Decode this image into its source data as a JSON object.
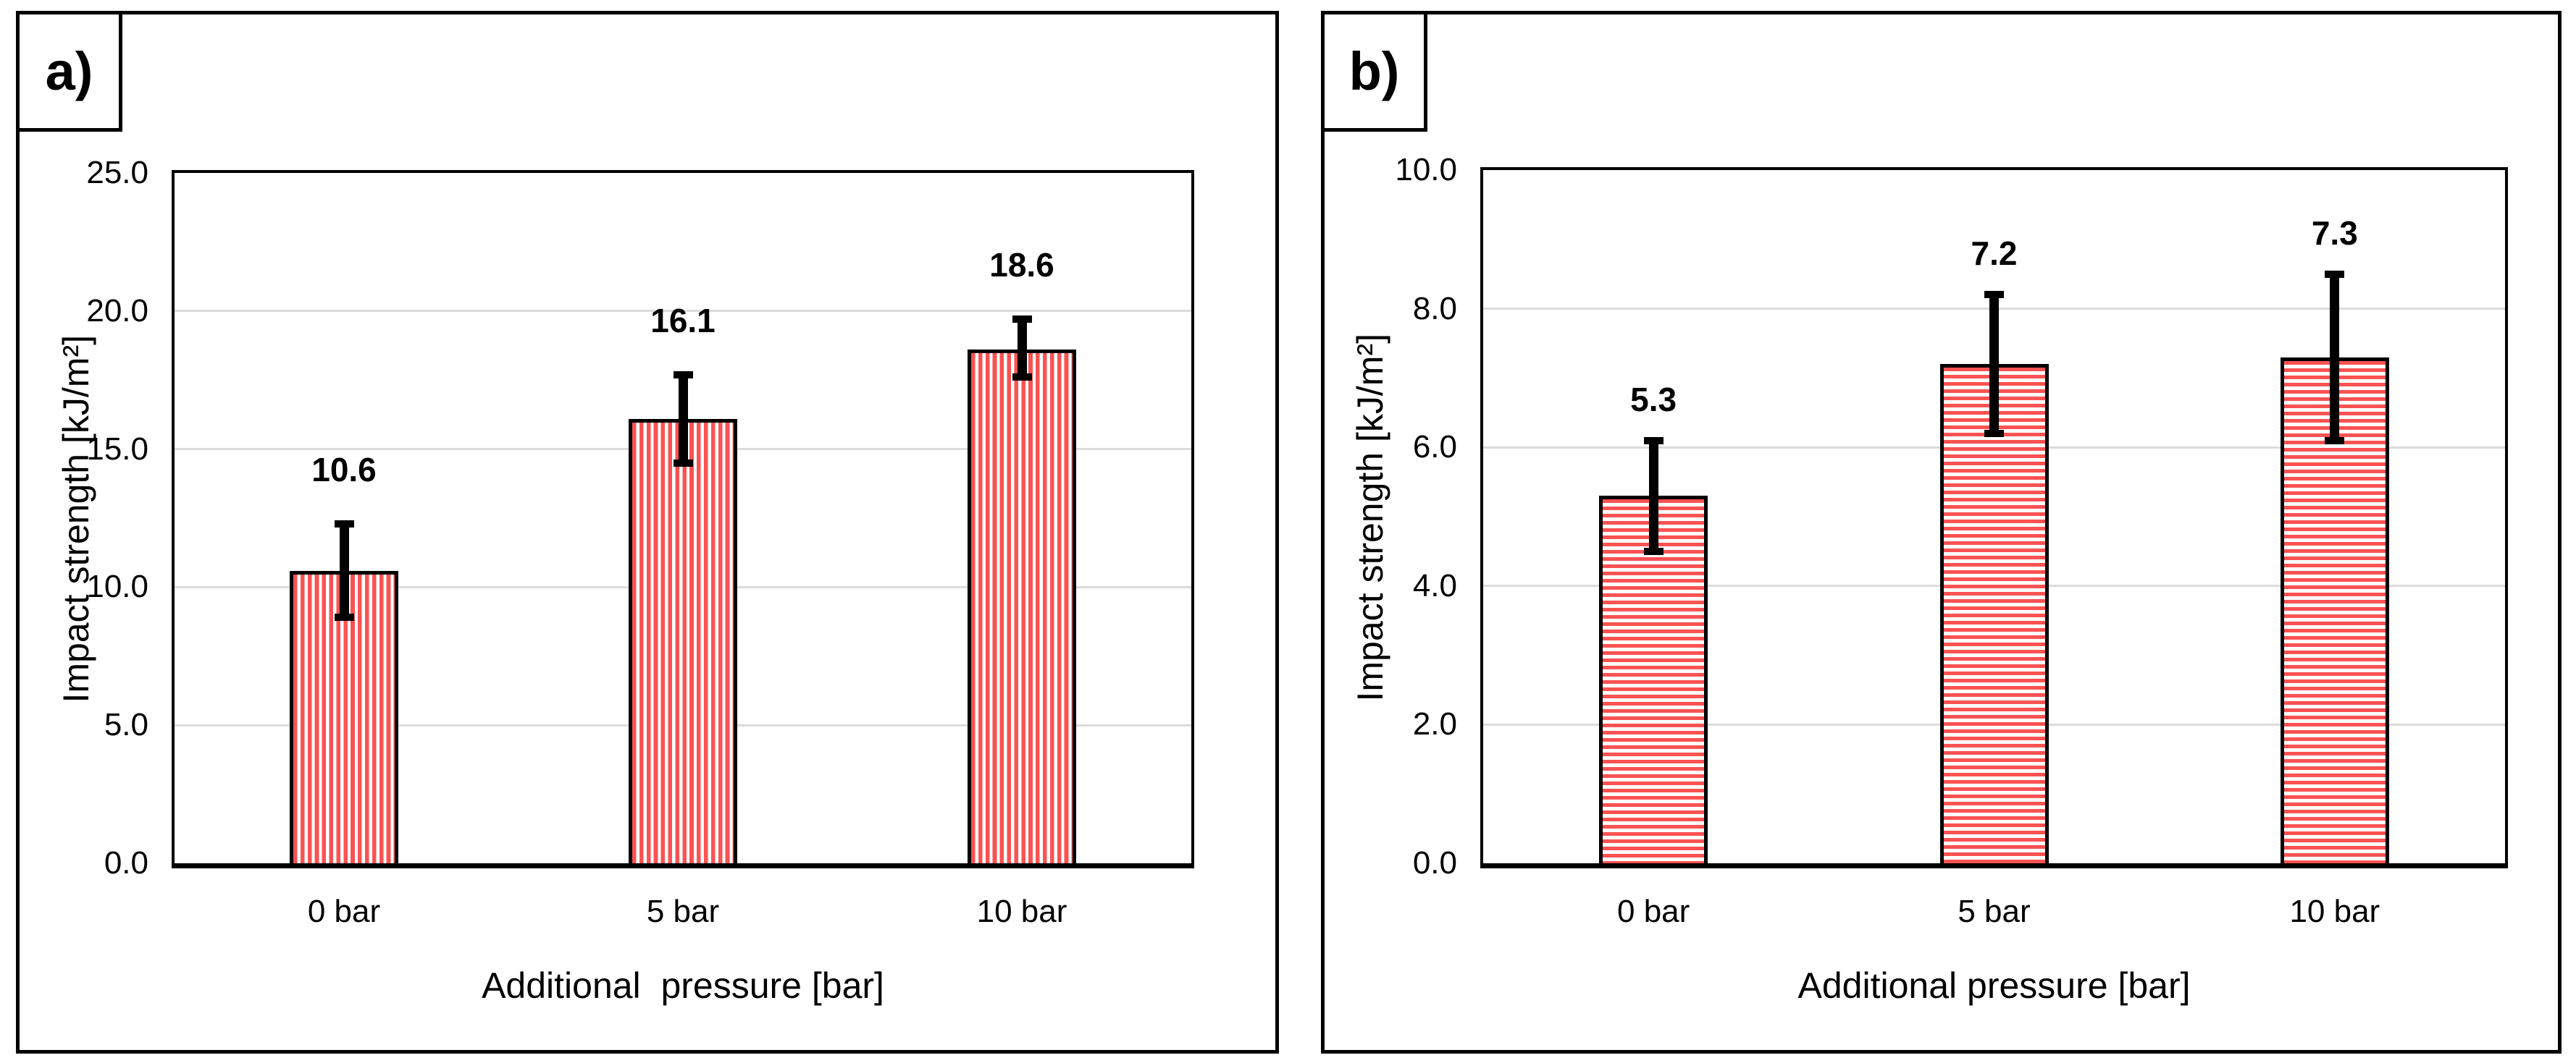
{
  "figure": {
    "background": "#FFFFFF",
    "panel_border_color": "#000000",
    "gridline_color": "#DBDBDB",
    "bar_stripe_red": "#FB5252",
    "error_bar_color": "#000000",
    "text_color": "#000000"
  },
  "chart_data": [
    {
      "type": "bar",
      "panel_label": "a)",
      "title": "",
      "xlabel": "Additional  pressure [bar]",
      "ylabel": "Impact strength [kJ/m²]",
      "categories": [
        "0 bar",
        "5 bar",
        "10 bar"
      ],
      "values": [
        10.6,
        16.1,
        18.6
      ],
      "value_labels": [
        "10.6",
        "16.1",
        "18.6"
      ],
      "error_plus": [
        1.7,
        1.6,
        1.1
      ],
      "error_minus": [
        1.7,
        1.6,
        1.0
      ],
      "ylim": [
        0,
        25
      ],
      "ytick_values": [
        0,
        5,
        10,
        15,
        20,
        25
      ],
      "ytick_labels": [
        "0.0",
        "5.0",
        "10.0",
        "15.0",
        "20.0",
        "25.0"
      ],
      "grid": true,
      "legend": "none",
      "bar_pattern": "vertical-stripes"
    },
    {
      "type": "bar",
      "panel_label": "b)",
      "title": "",
      "xlabel": "Additional pressure [bar]",
      "ylabel": "Impact strength [kJ/m²]",
      "categories": [
        "0 bar",
        "5 bar",
        "10 bar"
      ],
      "values": [
        5.3,
        7.2,
        7.3
      ],
      "value_labels": [
        "5.3",
        "7.2",
        "7.3"
      ],
      "error_plus": [
        0.8,
        1.0,
        1.2
      ],
      "error_minus": [
        0.8,
        1.0,
        1.2
      ],
      "ylim": [
        0,
        10
      ],
      "ytick_values": [
        0,
        2,
        4,
        6,
        8,
        10
      ],
      "ytick_labels": [
        "0.0",
        "2.0",
        "4.0",
        "6.0",
        "8.0",
        "10.0"
      ],
      "grid": true,
      "legend": "none",
      "bar_pattern": "horizontal-stripes"
    }
  ]
}
